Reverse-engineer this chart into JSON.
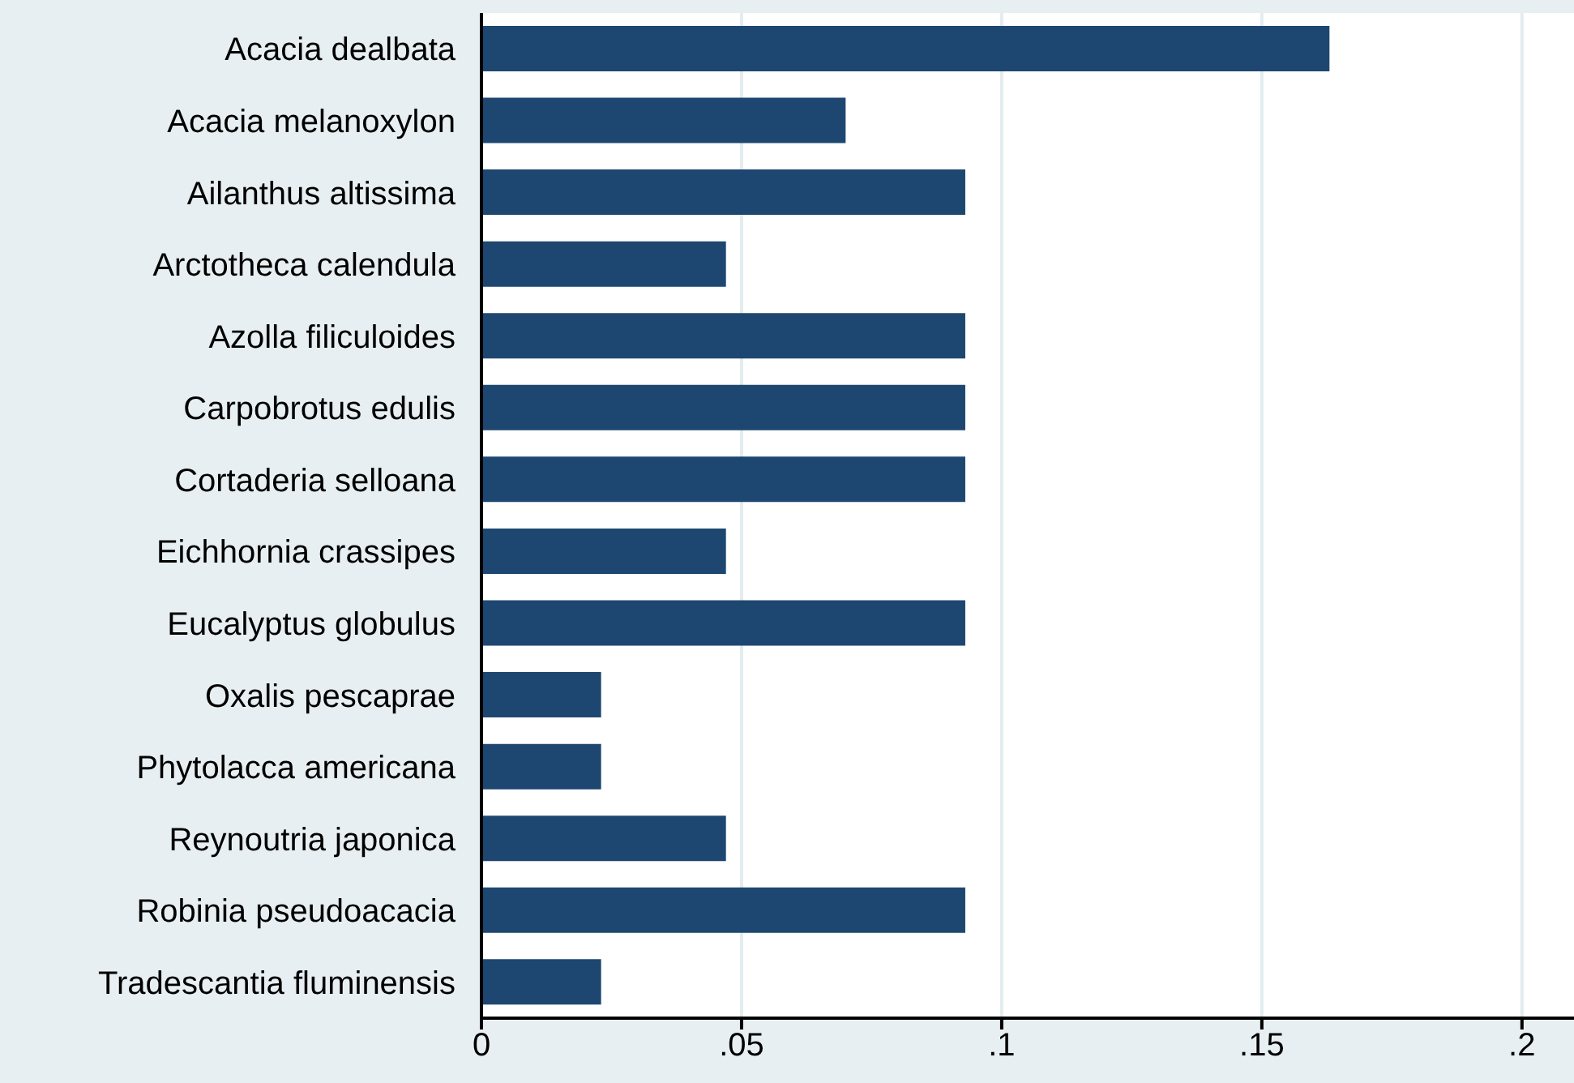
{
  "chart_data": {
    "type": "bar",
    "orientation": "horizontal",
    "categories": [
      "Acacia dealbata",
      "Acacia melanoxylon",
      "Ailanthus altissima",
      "Arctotheca calendula",
      "Azolla filiculoides",
      "Carpobrotus edulis",
      "Cortaderia selloana",
      "Eichhornia crassipes",
      "Eucalyptus globulus",
      "Oxalis pescaprae",
      "Phytolacca americana",
      "Reynoutria japonica",
      "Robinia pseudoacacia",
      "Tradescantia fluminensis"
    ],
    "values": [
      0.163,
      0.07,
      0.093,
      0.047,
      0.093,
      0.093,
      0.093,
      0.047,
      0.093,
      0.023,
      0.023,
      0.047,
      0.093,
      0.023
    ],
    "color": "#1d4770",
    "xlim": [
      0,
      0.21
    ],
    "xticks": [
      0,
      {
        "value": 0.05,
        "label": ".05"
      },
      {
        "value": 0.1,
        "label": ".1"
      },
      {
        "value": 0.15,
        "label": ".15"
      },
      {
        "value": 0.2,
        "label": ".2"
      }
    ],
    "grid": "x"
  }
}
